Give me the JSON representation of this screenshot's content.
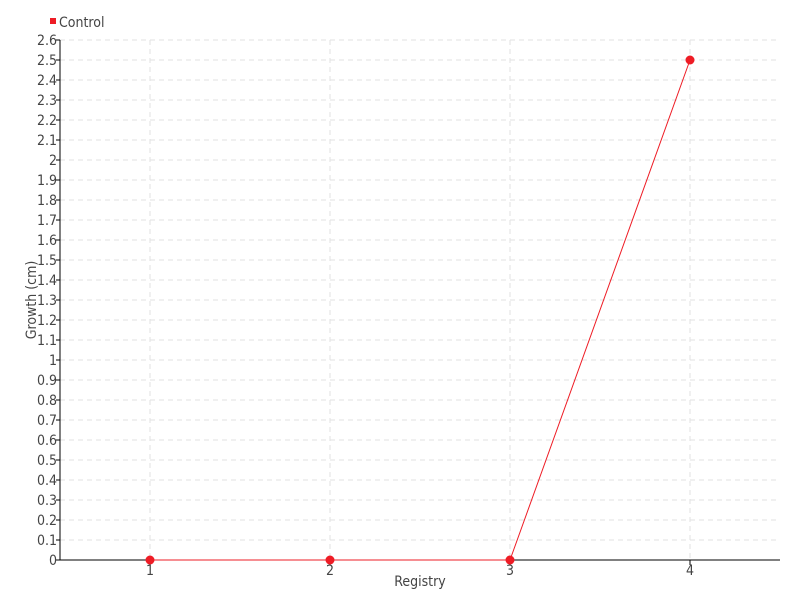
{
  "chart_data": {
    "type": "line",
    "title": "",
    "xlabel": "Registry",
    "ylabel": "Growth (cm)",
    "x": [
      1,
      2,
      3,
      4
    ],
    "xlim": [
      0.5,
      4.5
    ],
    "ylim": [
      0,
      2.6
    ],
    "y_tick_labels": [
      "0",
      "0.1",
      "0.2",
      "0.3",
      "0.4",
      "0.5",
      "0.6",
      "0.7",
      "0.8",
      "0.9",
      "1",
      "1.1",
      "1.2",
      "1.3",
      "1.4",
      "1.5",
      "1.6",
      "1.7",
      "1.8",
      "1.9",
      "2",
      "2.1",
      "2.2",
      "2.3",
      "2.4",
      "2.5",
      "2.6"
    ],
    "x_tick_labels": [
      "1",
      "2",
      "3",
      "4"
    ],
    "grid": true,
    "legend_placement": "top-left",
    "series": [
      {
        "name": "Control",
        "values": [
          0,
          0,
          0,
          2.5
        ],
        "color": "#ee1c25"
      }
    ]
  }
}
